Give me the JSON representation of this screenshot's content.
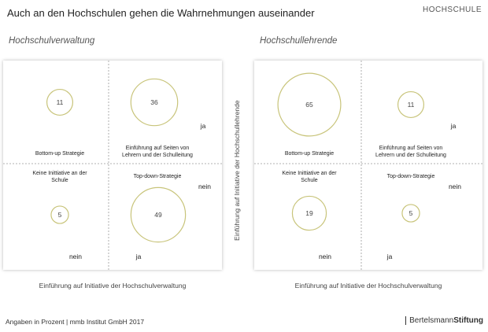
{
  "header": {
    "title": "Auch an den Hochschulen gehen die Wahrnehmungen auseinander",
    "category": "HOCHSCHULE"
  },
  "footer": {
    "note": "Angaben in Prozent  | mmb Institut GmbH 2017",
    "brand_light": "Bertelsmann",
    "brand_bold": "Stiftung"
  },
  "colors": {
    "circle_stroke": "#c8c47a",
    "divider": "#999999",
    "text": "#333333"
  },
  "chart_data": [
    {
      "type": "bubble-quadrant",
      "title": "Hochschulverwaltung",
      "xlabel": "Einführung auf Initiative der Hochschulverwaltung",
      "ylabel": "",
      "axis_labels": {
        "x_yes": "ja",
        "x_no": "nein",
        "y_yes": "ja",
        "y_no": "nein"
      },
      "quadrants": [
        {
          "label": "Bottom-up Strategie",
          "value": 11
        },
        {
          "label": "Einführung auf Seiten von Lehrern und der Schulleitung",
          "value": 36
        },
        {
          "label": "Keine Inittiative an der Schule",
          "value": 5
        },
        {
          "label": "Top-down-Strategie",
          "value": 49
        }
      ]
    },
    {
      "type": "bubble-quadrant",
      "title": "Hochschullehrende",
      "xlabel": "Einführung auf Initiative der Hochschulverwaltung",
      "ylabel": "Einführung auf Initiative der Hochschullehrende",
      "axis_labels": {
        "x_yes": "ja",
        "x_no": "nein",
        "y_yes": "ja",
        "y_no": "nein"
      },
      "quadrants": [
        {
          "label": "Bottom-up Strategie",
          "value": 65
        },
        {
          "label": "Einführung auf Seiten von Lehrern und der Schulleitung",
          "value": 11
        },
        {
          "label": "Keine Inittiative an der Schule",
          "value": 19
        },
        {
          "label": "Top-down-Strategie",
          "value": 5
        }
      ]
    }
  ]
}
